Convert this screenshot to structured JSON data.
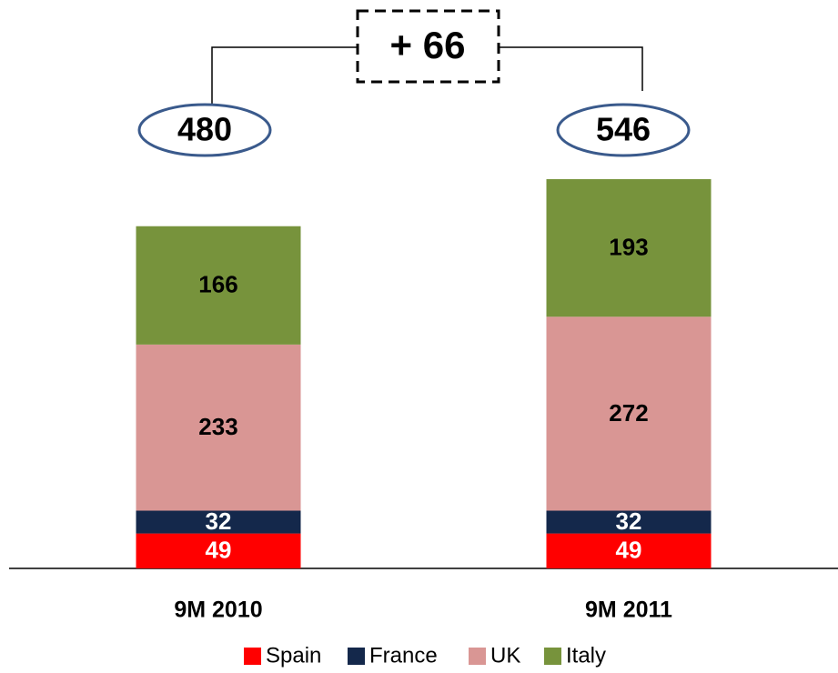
{
  "chart_data": {
    "type": "stacked-bar",
    "categories": [
      "9M 2010",
      "9M 2011"
    ],
    "series": [
      {
        "name": "Spain",
        "color": "#ff0000",
        "values": [
          49,
          49
        ]
      },
      {
        "name": "France",
        "color": "#14284b",
        "values": [
          32,
          32
        ]
      },
      {
        "name": "UK",
        "color": "#d99694",
        "values": [
          233,
          272
        ]
      },
      {
        "name": "Italy",
        "color": "#77933c",
        "values": [
          166,
          193
        ]
      }
    ],
    "totals": [
      480,
      546
    ],
    "annotation": "+ 66"
  }
}
